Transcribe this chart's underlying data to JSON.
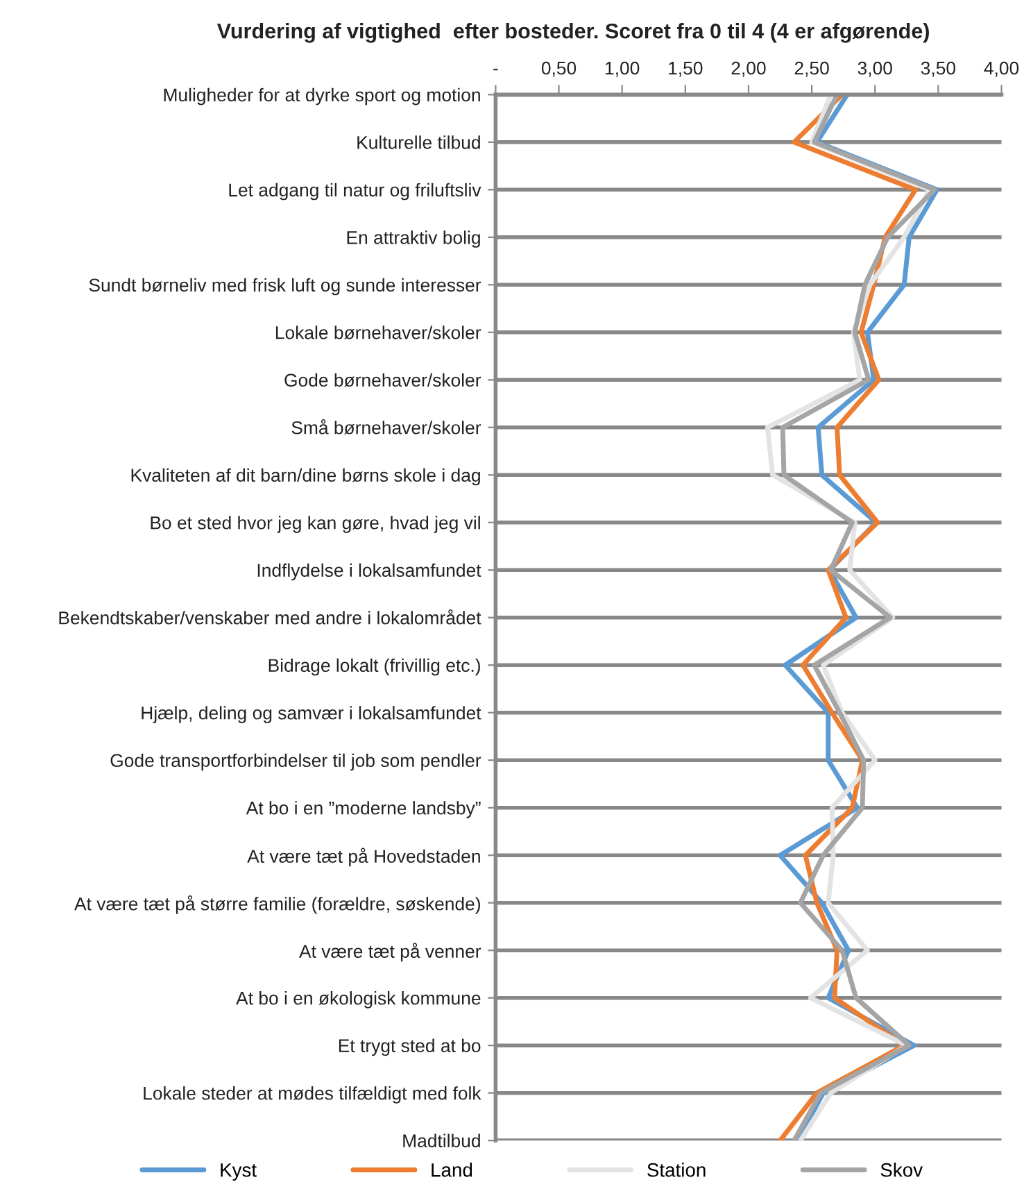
{
  "chart_data": {
    "type": "line",
    "orientation": "horizontal",
    "title": "Vurdering af vigtighed  efter bosteder. Scoret fra 0 til 4 (4 er afgørende)",
    "categories": [
      "Muligheder for at dyrke sport og motion",
      "Kulturelle tilbud",
      "Let adgang til natur og friluftsliv",
      "En attraktiv bolig",
      "Sundt børneliv med frisk luft og sunde interesser",
      "Lokale børnehaver/skoler",
      "Gode børnehaver/skoler",
      "Små børnehaver/skoler",
      "Kvaliteten af dit barn/dine børns skole i dag",
      "Bo et sted hvor jeg kan gøre, hvad jeg vil",
      "Indflydelse i lokalsamfundet",
      "Bekendtskaber/venskaber med andre i lokalområdet",
      "Bidrage lokalt (frivillig etc.)",
      "Hjælp, deling og samvær i lokalsamfundet",
      "Gode transportforbindelser til job som pendler",
      "At bo i en ”moderne landsby”",
      "At være tæt på Hovedstaden",
      "At være tæt på større familie (forældre, søskende)",
      "At være tæt på venner",
      "At bo i en økologisk kommune",
      "Et trygt sted at bo",
      "Lokale steder at mødes tilfældigt med folk",
      "Madtilbud"
    ],
    "series": [
      {
        "name": "Kyst",
        "color": "#5b9bd5",
        "values": [
          2.78,
          2.54,
          3.49,
          3.27,
          3.23,
          2.94,
          2.99,
          2.55,
          2.58,
          3.01,
          2.64,
          2.85,
          2.29,
          2.63,
          2.63,
          2.86,
          2.25,
          2.58,
          2.79,
          2.63,
          3.31,
          2.59,
          2.39
        ]
      },
      {
        "name": "Land",
        "color": "#ed7d31",
        "values": [
          2.74,
          2.36,
          3.32,
          3.08,
          2.99,
          2.89,
          3.03,
          2.7,
          2.72,
          3.02,
          2.63,
          2.77,
          2.43,
          2.66,
          2.9,
          2.82,
          2.45,
          2.54,
          2.7,
          2.68,
          3.23,
          2.54,
          2.25
        ]
      },
      {
        "name": "Station",
        "color": "#e3e3e3",
        "values": [
          2.65,
          2.5,
          3.43,
          3.23,
          2.96,
          2.83,
          2.88,
          2.15,
          2.19,
          2.84,
          2.8,
          3.14,
          2.59,
          2.74,
          3.0,
          2.66,
          2.67,
          2.63,
          2.94,
          2.49,
          3.25,
          2.65,
          2.41
        ]
      },
      {
        "name": "Skov",
        "color": "#a5a5a5",
        "values": [
          2.7,
          2.52,
          3.47,
          3.1,
          2.92,
          2.84,
          2.95,
          2.27,
          2.28,
          2.82,
          2.65,
          3.12,
          2.52,
          2.72,
          2.91,
          2.9,
          2.59,
          2.41,
          2.74,
          2.85,
          3.27,
          2.57,
          2.36
        ]
      }
    ],
    "xlim": [
      0,
      4
    ],
    "xticks": [
      {
        "value": 0,
        "label": "-"
      },
      {
        "value": 0.5,
        "label": "0,50"
      },
      {
        "value": 1,
        "label": "1,00"
      },
      {
        "value": 1.5,
        "label": "1,50"
      },
      {
        "value": 2,
        "label": "2,00"
      },
      {
        "value": 2.5,
        "label": "2,50"
      },
      {
        "value": 3,
        "label": "3,00"
      },
      {
        "value": 3.5,
        "label": "3,50"
      },
      {
        "value": 4,
        "label": "4,00"
      }
    ],
    "grid": "y",
    "legend": "bottom",
    "line_style": "solid"
  }
}
